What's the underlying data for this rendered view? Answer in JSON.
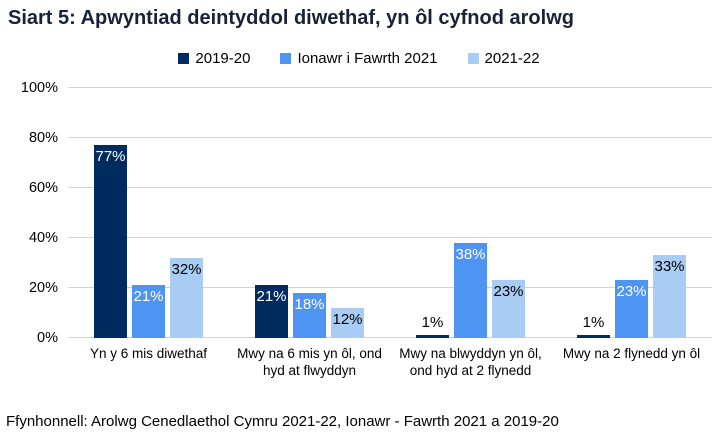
{
  "title": "Siart 5: Apwyntiad deintyddol diwethaf, yn ôl cyfnod arolwg",
  "source": "Ffynhonnell: Arolwg Cenedlaethol Cymru 2021-22, Ionawr - Fawrth 2021 a 2019-20",
  "colors": {
    "title_text": "#1A2138",
    "axis_text": "#000000",
    "gridline": "#BDD7EE",
    "series": [
      "#002B5F",
      "#4E94F2",
      "#A9CCF5"
    ],
    "value_label_on_series": [
      "#FFFFFF",
      "#FFFFFF",
      "#000000"
    ],
    "value_label_outside": "#000000"
  },
  "chart_data": {
    "type": "bar",
    "title": "Siart 5: Apwyntiad deintyddol diwethaf, yn ôl cyfnod arolwg",
    "categories": [
      "Yn y 6 mis diwethaf",
      "Mwy na 6 mis yn ôl, ond hyd at flwyddyn",
      "Mwy na blwyddyn yn ôl, ond hyd at 2 flynedd",
      "Mwy na 2 flynedd yn ôl"
    ],
    "series": [
      {
        "name": "2019-20",
        "values": [
          77,
          21,
          1,
          1
        ]
      },
      {
        "name": "Ionawr i Fawrth 2021",
        "values": [
          21,
          18,
          38,
          23
        ]
      },
      {
        "name": "2021-22",
        "values": [
          32,
          12,
          23,
          33
        ]
      }
    ],
    "value_label_format": "percent",
    "xlabel": "",
    "ylabel": "",
    "ylim": [
      0,
      100
    ],
    "yticks": [
      0,
      20,
      40,
      60,
      80,
      100
    ],
    "ytick_format": "percent",
    "grid": true,
    "legend_position": "top"
  }
}
